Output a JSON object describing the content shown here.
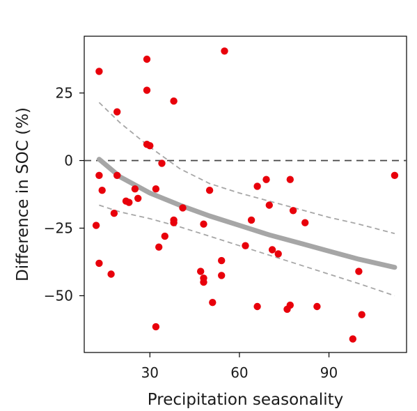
{
  "chart_data": {
    "type": "scatter",
    "title": "",
    "xlabel": "Precipitation seasonality",
    "ylabel": "Difference in SOC (%)",
    "xlim": [
      8,
      116
    ],
    "ylim": [
      -71,
      46
    ],
    "xticks": [
      30,
      60,
      90
    ],
    "xtick_labels": [
      "30",
      "60",
      "90"
    ],
    "yticks": [
      25,
      0,
      -25,
      -50
    ],
    "ytick_labels": [
      "25",
      "0",
      "−25",
      "−50"
    ],
    "grid": false,
    "legend": "none",
    "reference_line_y": 0,
    "colors": {
      "points": "#e8000b",
      "fit": "#a6a6a6",
      "ci": "#a6a6a6",
      "reference": "#444444",
      "axis": "#000000"
    },
    "points": [
      {
        "x": 13,
        "y": 33
      },
      {
        "x": 29,
        "y": 37.5
      },
      {
        "x": 55,
        "y": 40.5
      },
      {
        "x": 29,
        "y": 26
      },
      {
        "x": 38,
        "y": 22
      },
      {
        "x": 19,
        "y": 18
      },
      {
        "x": 29,
        "y": 6
      },
      {
        "x": 30,
        "y": 5.5
      },
      {
        "x": 34,
        "y": -1
      },
      {
        "x": 13,
        "y": -5.5
      },
      {
        "x": 19,
        "y": -5.5
      },
      {
        "x": 14,
        "y": -11
      },
      {
        "x": 25,
        "y": -10.5
      },
      {
        "x": 32,
        "y": -10.5
      },
      {
        "x": 50,
        "y": -11
      },
      {
        "x": 26,
        "y": -14
      },
      {
        "x": 22,
        "y": -15
      },
      {
        "x": 23,
        "y": -15.5
      },
      {
        "x": 41,
        "y": -17.5
      },
      {
        "x": 18,
        "y": -19.5
      },
      {
        "x": 38,
        "y": -22
      },
      {
        "x": 38,
        "y": -23
      },
      {
        "x": 12,
        "y": -24
      },
      {
        "x": 48,
        "y": -23.5
      },
      {
        "x": 35,
        "y": -28
      },
      {
        "x": 33,
        "y": -32
      },
      {
        "x": 13,
        "y": -38
      },
      {
        "x": 17,
        "y": -42
      },
      {
        "x": 64,
        "y": -22
      },
      {
        "x": 62,
        "y": -31.5
      },
      {
        "x": 66,
        "y": -9.5
      },
      {
        "x": 69,
        "y": -7
      },
      {
        "x": 70,
        "y": -16.5
      },
      {
        "x": 77,
        "y": -7
      },
      {
        "x": 78,
        "y": -18.5
      },
      {
        "x": 82,
        "y": -23
      },
      {
        "x": 71,
        "y": -33
      },
      {
        "x": 73,
        "y": -34.5
      },
      {
        "x": 54,
        "y": -37
      },
      {
        "x": 47,
        "y": -41
      },
      {
        "x": 54,
        "y": -42.5
      },
      {
        "x": 48,
        "y": -43.5
      },
      {
        "x": 48,
        "y": -45
      },
      {
        "x": 51,
        "y": -52.5
      },
      {
        "x": 66,
        "y": -54
      },
      {
        "x": 76,
        "y": -55
      },
      {
        "x": 77,
        "y": -53.5
      },
      {
        "x": 86,
        "y": -54
      },
      {
        "x": 100,
        "y": -41
      },
      {
        "x": 101,
        "y": -57
      },
      {
        "x": 98,
        "y": -66
      },
      {
        "x": 32,
        "y": -61.5
      },
      {
        "x": 112,
        "y": -5.5
      }
    ],
    "fit": [
      {
        "x": 13,
        "y": 0.5
      },
      {
        "x": 20,
        "y": -6
      },
      {
        "x": 30,
        "y": -12
      },
      {
        "x": 40,
        "y": -16.5
      },
      {
        "x": 50,
        "y": -20.5
      },
      {
        "x": 60,
        "y": -24
      },
      {
        "x": 70,
        "y": -27.5
      },
      {
        "x": 80,
        "y": -30.5
      },
      {
        "x": 90,
        "y": -33.5
      },
      {
        "x": 100,
        "y": -36.5
      },
      {
        "x": 112,
        "y": -39.5
      }
    ],
    "ci_upper": [
      {
        "x": 13,
        "y": 21.5
      },
      {
        "x": 20,
        "y": 14
      },
      {
        "x": 30,
        "y": 5
      },
      {
        "x": 40,
        "y": -3
      },
      {
        "x": 50,
        "y": -8.5
      },
      {
        "x": 60,
        "y": -12
      },
      {
        "x": 70,
        "y": -15
      },
      {
        "x": 80,
        "y": -18
      },
      {
        "x": 90,
        "y": -21
      },
      {
        "x": 100,
        "y": -23.5
      },
      {
        "x": 112,
        "y": -27
      }
    ],
    "ci_lower": [
      {
        "x": 13,
        "y": -16.5
      },
      {
        "x": 20,
        "y": -19
      },
      {
        "x": 30,
        "y": -21.5
      },
      {
        "x": 40,
        "y": -24.5
      },
      {
        "x": 50,
        "y": -28
      },
      {
        "x": 60,
        "y": -31.5
      },
      {
        "x": 70,
        "y": -35
      },
      {
        "x": 80,
        "y": -38.5
      },
      {
        "x": 90,
        "y": -42
      },
      {
        "x": 100,
        "y": -45.5
      },
      {
        "x": 112,
        "y": -50
      }
    ]
  }
}
